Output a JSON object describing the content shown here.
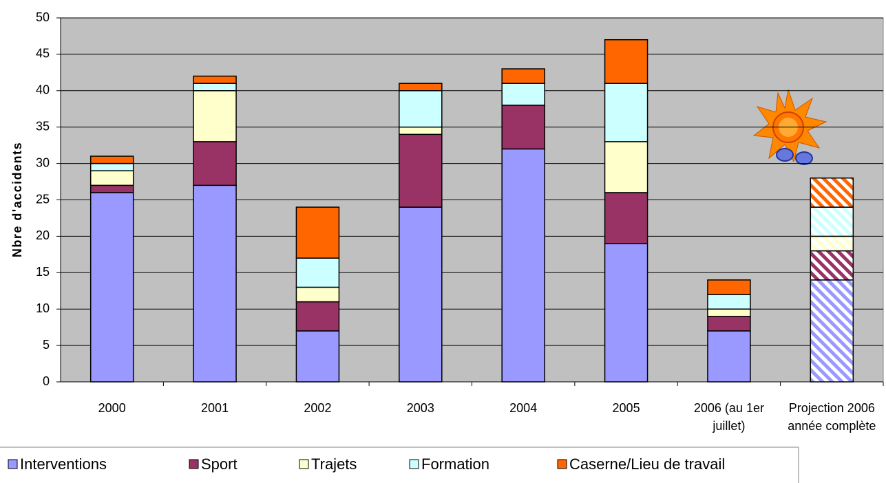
{
  "chart_data": {
    "type": "stacked-bar",
    "y_label": "Nbre d'accidents",
    "categories": [
      "2000",
      "2001",
      "2002",
      "2003",
      "2004",
      "2005",
      "2006 (au 1er juillet)",
      "Projection 2006 année complète"
    ],
    "hatched": [
      false,
      false,
      false,
      false,
      false,
      false,
      false,
      true
    ],
    "series": [
      {
        "name": "Interventions",
        "color": "#9999ff",
        "values": [
          26,
          27,
          7,
          24,
          32,
          19,
          7,
          14
        ]
      },
      {
        "name": "Sport",
        "color": "#993366",
        "values": [
          1,
          6,
          4,
          10,
          6,
          7,
          2,
          4
        ]
      },
      {
        "name": "Trajets",
        "color": "#ffffcc",
        "values": [
          2,
          7,
          2,
          1,
          0,
          7,
          1,
          2
        ]
      },
      {
        "name": "Formation",
        "color": "#ccffff",
        "values": [
          1,
          1,
          4,
          5,
          3,
          8,
          2,
          4
        ]
      },
      {
        "name": "Caserne/Lieu de travail",
        "color": "#ff6600",
        "values": [
          1,
          1,
          7,
          1,
          2,
          6,
          2,
          4
        ]
      }
    ],
    "ylim": [
      0,
      50
    ],
    "yticks": [
      0,
      5,
      10,
      15,
      20,
      25,
      30,
      35,
      40,
      45,
      50
    ],
    "grid": true,
    "legend": "bottom"
  }
}
